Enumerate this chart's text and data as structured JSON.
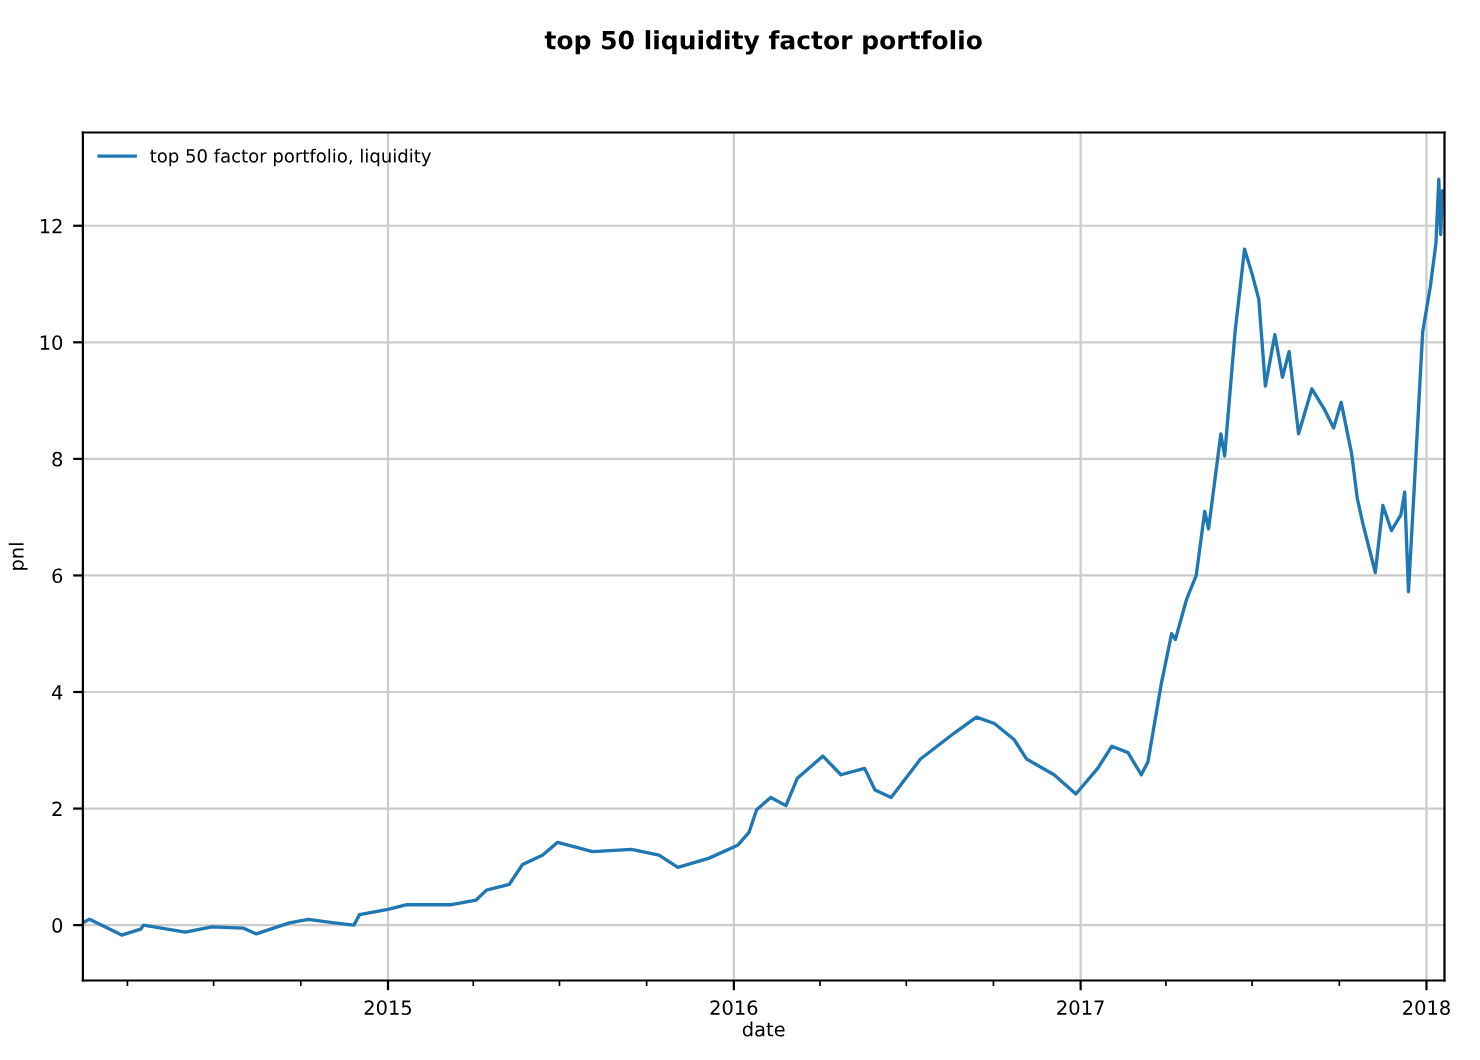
{
  "chart_data": {
    "type": "line",
    "title": "top 50 liquidity factor portfolio",
    "xlabel": "date",
    "ylabel": "pnl",
    "series": [
      {
        "name": "top 50 factor portfolio, liquidity",
        "color": "#1f77b4",
        "x": [
          "2014-02-13",
          "2014-02-20",
          "2014-03-26",
          "2014-04-15",
          "2014-04-18",
          "2014-06-01",
          "2014-06-29",
          "2014-08-01",
          "2014-08-15",
          "2014-09-19",
          "2014-10-09",
          "2014-11-05",
          "2014-11-26",
          "2014-12-02",
          "2015-01-01",
          "2015-01-21",
          "2015-03-09",
          "2015-04-04",
          "2015-04-15",
          "2015-05-09",
          "2015-05-23",
          "2015-06-13",
          "2015-06-29",
          "2015-08-05",
          "2015-09-15",
          "2015-10-14",
          "2015-11-03",
          "2015-12-06",
          "2016-01-05",
          "2016-01-17",
          "2016-01-25",
          "2016-02-09",
          "2016-02-25",
          "2016-03-08",
          "2016-04-04",
          "2016-04-23",
          "2016-05-18",
          "2016-05-29",
          "2016-06-15",
          "2016-07-16",
          "2016-08-21",
          "2016-09-13",
          "2016-10-02",
          "2016-10-23",
          "2016-11-05",
          "2016-12-04",
          "2016-12-27",
          "2017-01-19",
          "2017-02-03",
          "2017-02-20",
          "2017-03-06",
          "2017-03-13",
          "2017-03-27",
          "2017-04-07",
          "2017-04-11",
          "2017-04-23",
          "2017-05-03",
          "2017-05-12",
          "2017-05-16",
          "2017-05-29",
          "2017-06-02",
          "2017-06-13",
          "2017-06-23",
          "2017-07-01",
          "2017-07-08",
          "2017-07-15",
          "2017-07-25",
          "2017-08-02",
          "2017-08-09",
          "2017-08-19",
          "2017-09-02",
          "2017-09-15",
          "2017-09-25",
          "2017-10-03",
          "2017-10-14",
          "2017-10-20",
          "2017-10-26",
          "2017-11-08",
          "2017-11-16",
          "2017-11-25",
          "2017-12-05",
          "2017-12-09",
          "2017-12-13",
          "2017-12-19",
          "2017-12-28",
          "2018-01-05",
          "2018-01-11",
          "2018-01-14",
          "2018-01-16",
          "2018-01-18",
          "2018-01-20"
        ],
        "values": [
          0.04,
          0.1,
          -0.17,
          -0.07,
          0.0,
          -0.12,
          -0.03,
          -0.05,
          -0.15,
          0.04,
          0.1,
          0.04,
          0.0,
          0.18,
          0.27,
          0.35,
          0.35,
          0.43,
          0.6,
          0.7,
          1.04,
          1.2,
          1.42,
          1.26,
          1.3,
          1.2,
          0.99,
          1.15,
          1.37,
          1.59,
          1.98,
          2.19,
          2.05,
          2.52,
          2.9,
          2.58,
          2.69,
          2.32,
          2.19,
          2.85,
          3.3,
          3.57,
          3.46,
          3.18,
          2.85,
          2.58,
          2.25,
          2.69,
          3.07,
          2.96,
          2.58,
          2.8,
          4.13,
          5.0,
          4.9,
          5.6,
          6.0,
          7.1,
          6.8,
          8.43,
          8.05,
          10.18,
          11.6,
          11.17,
          10.74,
          9.25,
          10.13,
          9.4,
          9.84,
          8.43,
          9.2,
          8.86,
          8.53,
          8.97,
          8.09,
          7.32,
          6.88,
          6.05,
          7.2,
          6.77,
          7.04,
          7.43,
          5.72,
          7.48,
          10.18,
          10.95,
          11.7,
          12.8,
          11.85,
          12.6,
          12.55
        ]
      }
    ],
    "xlim": [
      "2014-02-13",
      "2018-01-20"
    ],
    "xticks": [
      {
        "value": "2015-01-01",
        "label": "2015"
      },
      {
        "value": "2016-01-01",
        "label": "2016"
      },
      {
        "value": "2017-01-01",
        "label": "2017"
      },
      {
        "value": "2018-01-01",
        "label": "2018"
      }
    ],
    "ylim": [
      -0.95,
      13.6
    ],
    "yticks": [
      0,
      2,
      4,
      6,
      8,
      10,
      12
    ],
    "grid": true,
    "legend": "top left"
  }
}
